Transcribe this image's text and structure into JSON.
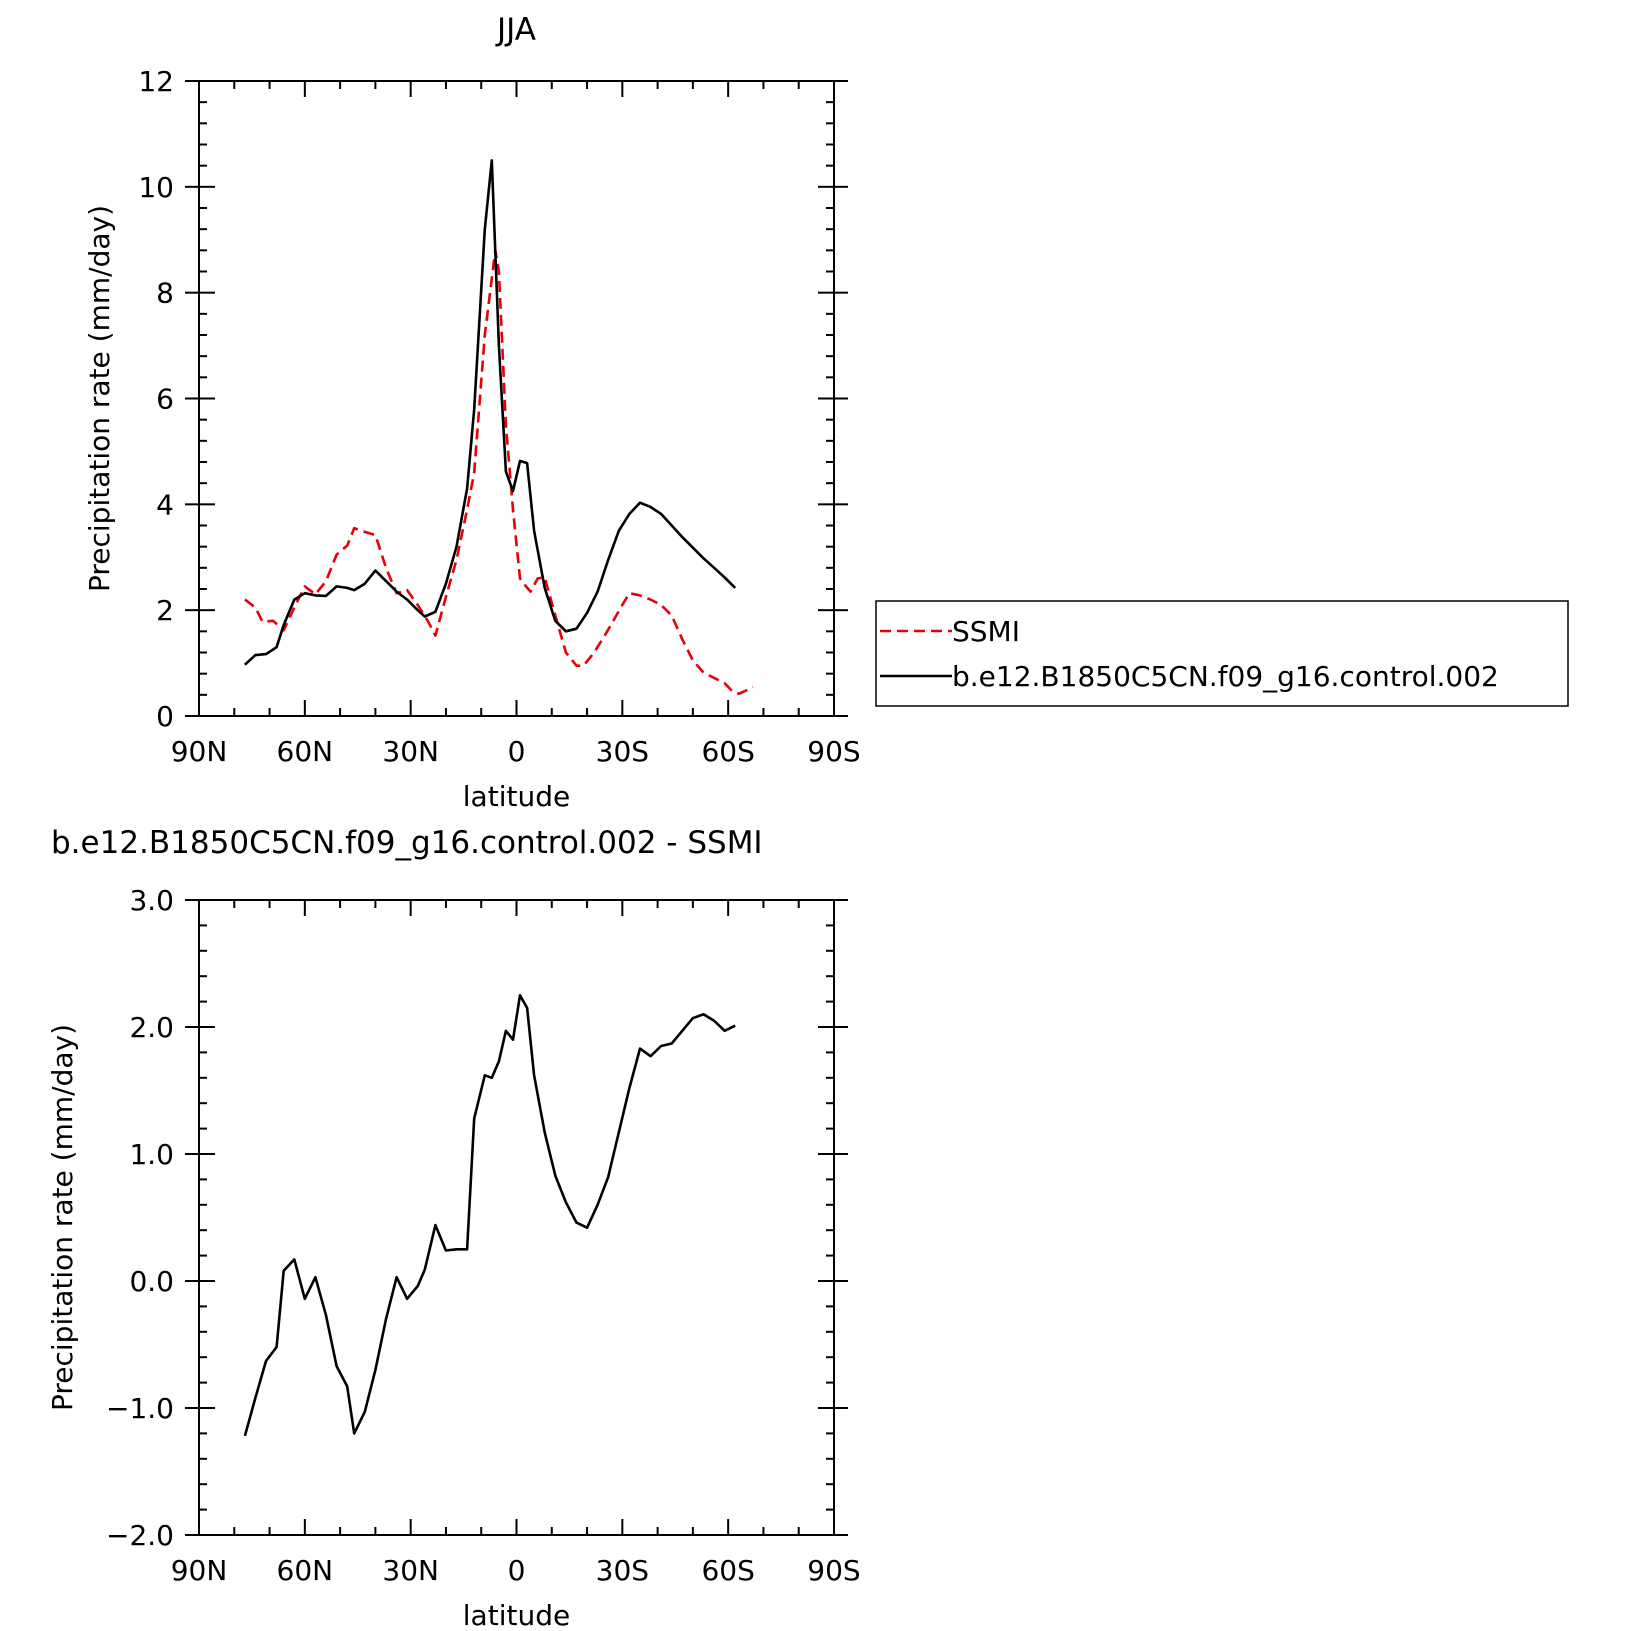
{
  "chart_data": [
    {
      "type": "line",
      "title": "JJA",
      "xlabel": "latitude",
      "ylabel": "Precipitation rate (mm/day)",
      "xlim": [
        90,
        -90
      ],
      "ylim": [
        0,
        12
      ],
      "x_ticks": [
        90,
        60,
        30,
        0,
        -30,
        -60,
        -90
      ],
      "x_tick_labels": [
        "90N",
        "60N",
        "30N",
        "0",
        "30S",
        "60S",
        "90S"
      ],
      "y_ticks": [
        0,
        2,
        4,
        6,
        8,
        10,
        12
      ],
      "y_tick_labels": [
        "0",
        "2",
        "4",
        "6",
        "8",
        "10",
        "12"
      ],
      "grid": false,
      "legend_position": "right",
      "series": [
        {
          "name": "SSMI",
          "color": "#e8000b",
          "dash": "dashed",
          "x": [
            77,
            74,
            72,
            69,
            66,
            63,
            60,
            57,
            54,
            51,
            48,
            46,
            43,
            40,
            37,
            34,
            31,
            28,
            25,
            23,
            20,
            17,
            14,
            12,
            9,
            6,
            5,
            3,
            1,
            -1,
            -2,
            -4,
            -6,
            -8,
            -11,
            -14,
            -17,
            -19,
            -22,
            -25,
            -27,
            -30,
            -32,
            -35,
            -38,
            -41,
            -44,
            -47,
            -50,
            -53,
            -56,
            -59,
            -61,
            -63,
            -65,
            -67
          ],
          "values": [
            2.2,
            2.05,
            1.78,
            1.8,
            1.62,
            2.05,
            2.45,
            2.3,
            2.55,
            3.05,
            3.22,
            3.55,
            3.48,
            3.42,
            2.8,
            2.32,
            2.38,
            2.1,
            1.78,
            1.52,
            2.25,
            2.95,
            3.9,
            4.6,
            7.2,
            8.8,
            8.4,
            5.5,
            3.9,
            2.6,
            2.5,
            2.35,
            2.6,
            2.62,
            1.9,
            1.2,
            0.95,
            0.95,
            1.2,
            1.52,
            1.75,
            2.1,
            2.32,
            2.28,
            2.2,
            2.1,
            1.9,
            1.45,
            1.05,
            0.82,
            0.72,
            0.62,
            0.48,
            0.42,
            0.48,
            0.55
          ]
        },
        {
          "name": "b.e12.B1850C5CN.f09_g16.control.002",
          "color": "#000000",
          "dash": "solid",
          "x": [
            77,
            74,
            71,
            68,
            66,
            63,
            60,
            57,
            54,
            51,
            48,
            46,
            43,
            40,
            37,
            34,
            31,
            28,
            26,
            23,
            20,
            17,
            14,
            12,
            9,
            7,
            5,
            3,
            1,
            -1,
            -3,
            -5,
            -8,
            -11,
            -14,
            -17,
            -20,
            -23,
            -26,
            -29,
            -32,
            -35,
            -38,
            -41,
            -44,
            -47,
            -50,
            -53,
            -56,
            -59,
            -62
          ],
          "values": [
            0.97,
            1.15,
            1.17,
            1.3,
            1.72,
            2.2,
            2.32,
            2.28,
            2.27,
            2.45,
            2.42,
            2.38,
            2.5,
            2.75,
            2.55,
            2.35,
            2.2,
            2.0,
            1.88,
            1.97,
            2.5,
            3.2,
            4.3,
            5.8,
            9.2,
            10.5,
            7.0,
            4.62,
            4.25,
            4.82,
            4.78,
            3.5,
            2.42,
            1.8,
            1.6,
            1.65,
            1.95,
            2.35,
            2.95,
            3.5,
            3.82,
            4.03,
            3.95,
            3.82,
            3.6,
            3.38,
            3.18,
            2.98,
            2.8,
            2.62,
            2.42
          ]
        }
      ]
    },
    {
      "type": "line",
      "title": "b.e12.B1850C5CN.f09_g16.control.002 - SSMI",
      "xlabel": "latitude",
      "ylabel": "Precipitation rate (mm/day)",
      "xlim": [
        90,
        -90
      ],
      "ylim": [
        -2.0,
        3.0
      ],
      "x_ticks": [
        90,
        60,
        30,
        0,
        -30,
        -60,
        -90
      ],
      "x_tick_labels": [
        "90N",
        "60N",
        "30N",
        "0",
        "30S",
        "60S",
        "90S"
      ],
      "y_ticks": [
        -2.0,
        -1.0,
        0.0,
        1.0,
        2.0,
        3.0
      ],
      "y_tick_labels": [
        "−2.0",
        "−1.0",
        "0.0",
        "1.0",
        "2.0",
        "3.0"
      ],
      "grid": false,
      "series": [
        {
          "color": "#000000",
          "dash": "solid",
          "x": [
            77,
            74,
            71,
            68,
            66,
            63,
            60,
            57,
            54,
            51,
            48,
            46,
            43,
            40,
            37,
            34,
            31,
            28,
            26,
            23,
            20,
            17,
            14,
            12,
            9,
            7,
            5,
            3,
            1,
            -1,
            -3,
            -5,
            -8,
            -11,
            -14,
            -17,
            -20,
            -23,
            -26,
            -29,
            -32,
            -35,
            -38,
            -41,
            -44,
            -47,
            -50,
            -53,
            -56,
            -59,
            -62
          ],
          "values": [
            -1.22,
            -0.92,
            -0.63,
            -0.52,
            0.08,
            0.17,
            -0.14,
            0.03,
            -0.27,
            -0.67,
            -0.83,
            -1.2,
            -1.03,
            -0.7,
            -0.3,
            0.03,
            -0.14,
            -0.04,
            0.09,
            0.44,
            0.24,
            0.25,
            0.25,
            1.28,
            1.62,
            1.6,
            1.73,
            1.97,
            1.9,
            2.25,
            2.15,
            1.62,
            1.17,
            0.83,
            0.62,
            0.46,
            0.42,
            0.6,
            0.82,
            1.17,
            1.52,
            1.83,
            1.77,
            1.85,
            1.87,
            1.97,
            2.07,
            2.1,
            2.05,
            1.97,
            2.01
          ]
        }
      ]
    }
  ]
}
